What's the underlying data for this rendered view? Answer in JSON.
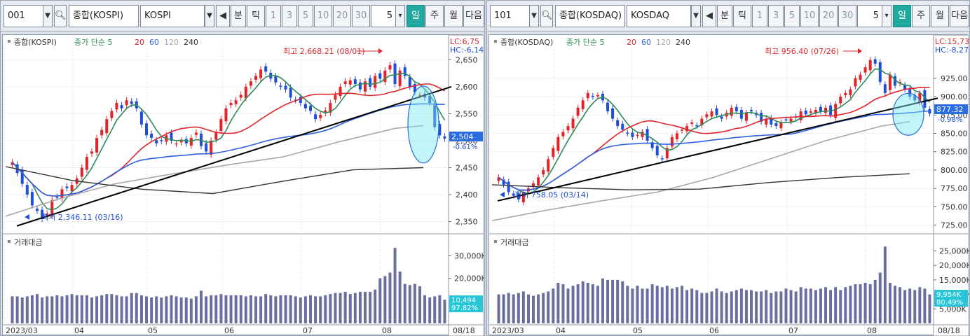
{
  "panels": [
    {
      "toolbar": {
        "code": "001",
        "name": "종합(KOSPI)",
        "sub": "KOSPI",
        "periods": [
          "분",
          "틱",
          "1",
          "3",
          "5",
          "10",
          "20",
          "30"
        ],
        "count": "5",
        "units": [
          "일",
          "주",
          "월"
        ],
        "next": "다음"
      },
      "legend": {
        "name": "종합(KOSPI)",
        "ma_title": "종가 단순 5",
        "ma": [
          "20",
          "60",
          "120",
          "240"
        ]
      },
      "lc": "LC:6,75",
      "hc": "HC:-6,14",
      "y_ticks": [
        "2,650",
        "2,600",
        "2,550",
        "2,500",
        "2,450",
        "2,400",
        "2,350"
      ],
      "price_box": "2,504",
      "change_box": "-0.61%",
      "high_label": "최고 2,668.21 (08/01)",
      "low_label": "최저 2,346.11 (03/16)",
      "vol_title": "거래대금",
      "vol_ticks": [
        "30,000K",
        "20,000K"
      ],
      "vol_box": "10,494",
      "vol_pct": "97.82%",
      "x_labels": [
        "2023/03",
        "04",
        "05",
        "06",
        "07",
        "08"
      ],
      "date": "08/18"
    },
    {
      "toolbar": {
        "code": "101",
        "name": "종합(KOSDAQ)",
        "sub": "KOSDAQ",
        "periods": [
          "분",
          "틱",
          "1",
          "3",
          "5",
          "10",
          "20",
          "30"
        ],
        "count": "5",
        "units": [
          "일",
          "주",
          "월"
        ],
        "next": "다음"
      },
      "legend": {
        "name": "종합(KOSDAQ)",
        "ma_title": "종가 단순 5",
        "ma": [
          "20",
          "60",
          "120",
          "240"
        ]
      },
      "lc": "LC:15,73",
      "hc": "HC:-8,27",
      "y_ticks": [
        "925.00",
        "900.00",
        "875.00",
        "850.00",
        "825.00",
        "800.00",
        "775.00",
        "750.00",
        "725.00"
      ],
      "price_box": "877.32",
      "change_box": "-0.98%",
      "high_label": "최고 956.40 (07/26)",
      "low_label": "최저 758.05 (03/14)",
      "vol_title": "거래대금",
      "vol_ticks": [
        "25,000K",
        "20,000K",
        "15,000K",
        "10,000K",
        "5,000K"
      ],
      "vol_box": "9,954K",
      "vol_pct": "80.49%",
      "x_labels": [
        "2023/03",
        "04",
        "05",
        "06",
        "07",
        "08"
      ],
      "date": "08/18"
    }
  ],
  "colors": {
    "up": "#e0242a",
    "down": "#1f4fd8",
    "ma5": "#2e8b57",
    "ma20": "#e0242a",
    "ma60": "#2f5fe0",
    "ma120": "#a7a7a7",
    "ma240": "#333333",
    "accent": "#21a9a0",
    "volume": "#6b6fa0"
  },
  "chart_data": [
    {
      "type": "candlestick",
      "title": "종합(KOSPI)",
      "x_labels": [
        "2023/03",
        "04",
        "05",
        "06",
        "07",
        "08"
      ],
      "ylim": [
        2330,
        2670
      ],
      "close": [
        2460,
        2440,
        2420,
        2400,
        2380,
        2370,
        2355,
        2365,
        2390,
        2395,
        2410,
        2412,
        2418,
        2430,
        2450,
        2470,
        2480,
        2505,
        2520,
        2540,
        2555,
        2570,
        2560,
        2575,
        2568,
        2560,
        2530,
        2510,
        2505,
        2495,
        2500,
        2510,
        2500,
        2495,
        2500,
        2495,
        2505,
        2515,
        2490,
        2480,
        2500,
        2515,
        2540,
        2560,
        2570,
        2575,
        2585,
        2600,
        2610,
        2620,
        2632,
        2628,
        2615,
        2608,
        2600,
        2595,
        2580,
        2575,
        2570,
        2560,
        2555,
        2540,
        2548,
        2556,
        2570,
        2585,
        2600,
        2610,
        2612,
        2605,
        2595,
        2610,
        2600,
        2620,
        2615,
        2630,
        2640,
        2605,
        2630,
        2620,
        2600,
        2590,
        2585,
        2580,
        2570,
        2525,
        2510,
        2504
      ],
      "volume_k": [
        12,
        12,
        11.5,
        12,
        12.5,
        13,
        11.5,
        12,
        12,
        12.5,
        12,
        12.5,
        13,
        12.5,
        12.5,
        12.5,
        11.5,
        12,
        12.5,
        13,
        13,
        12.5,
        12,
        12,
        13.5,
        13.5,
        12.5,
        12,
        11.5,
        12,
        11.5,
        12,
        12.5,
        12,
        11.5,
        11.5,
        11,
        12,
        14.5,
        12,
        12.5,
        12.5,
        13,
        12.5,
        12.5,
        12.5,
        12.5,
        12,
        12.5,
        12,
        12,
        13,
        12.5,
        12,
        12.5,
        12.5,
        12.5,
        12,
        11.5,
        12,
        12.5,
        12,
        12,
        12.5,
        13,
        13.5,
        13.5,
        14,
        13,
        13.5,
        14,
        14,
        14,
        15,
        20,
        21,
        22.5,
        33.5,
        23,
        17.5,
        17,
        17.5,
        16.5,
        12.5,
        11.5,
        12,
        12.5,
        10.5
      ],
      "vol_ylim": [
        0,
        36
      ]
    },
    {
      "type": "candlestick",
      "title": "종합(KOSDAQ)",
      "x_labels": [
        "2023/03",
        "04",
        "05",
        "06",
        "07",
        "08"
      ],
      "ylim": [
        715,
        965
      ],
      "close": [
        790,
        780,
        770,
        765,
        760,
        770,
        775,
        782,
        790,
        800,
        815,
        830,
        845,
        852,
        860,
        870,
        885,
        895,
        905,
        900,
        902,
        895,
        880,
        870,
        860,
        855,
        850,
        845,
        848,
        852,
        840,
        830,
        820,
        815,
        830,
        845,
        850,
        855,
        860,
        865,
        860,
        870,
        876,
        880,
        875,
        870,
        878,
        885,
        880,
        870,
        878,
        880,
        875,
        866,
        870,
        862,
        860,
        865,
        868,
        870,
        872,
        880,
        876,
        880,
        882,
        880,
        885,
        875,
        890,
        900,
        905,
        910,
        925,
        930,
        940,
        950,
        945,
        920,
        905,
        930,
        915,
        920,
        910,
        900,
        895,
        905,
        885,
        877
      ],
      "volume_k": [
        10,
        10,
        10.5,
        10,
        10.5,
        11,
        10,
        9.5,
        10,
        10.5,
        11,
        12,
        14,
        13.5,
        12,
        13,
        13.5,
        14.5,
        14,
        13.5,
        13,
        15.5,
        15,
        15,
        15,
        14.5,
        13,
        12,
        13,
        12,
        12,
        13.5,
        13,
        12.5,
        13,
        12,
        12.5,
        13,
        11.5,
        12,
        11.5,
        10.5,
        10.5,
        11,
        12,
        11,
        10.5,
        11,
        11.5,
        12,
        11.5,
        11.5,
        11,
        11,
        11.5,
        10.5,
        11,
        11,
        12,
        11.5,
        11,
        12.5,
        12,
        12,
        11.5,
        12,
        12.5,
        11.5,
        12.5,
        11.5,
        12.5,
        13,
        13.5,
        13.5,
        14,
        13.5,
        15,
        17.5,
        26.5,
        14,
        13,
        12.5,
        11.5,
        12,
        11.5,
        12.5,
        12,
        10
      ],
      "vol_ylim": [
        0,
        28
      ]
    }
  ]
}
